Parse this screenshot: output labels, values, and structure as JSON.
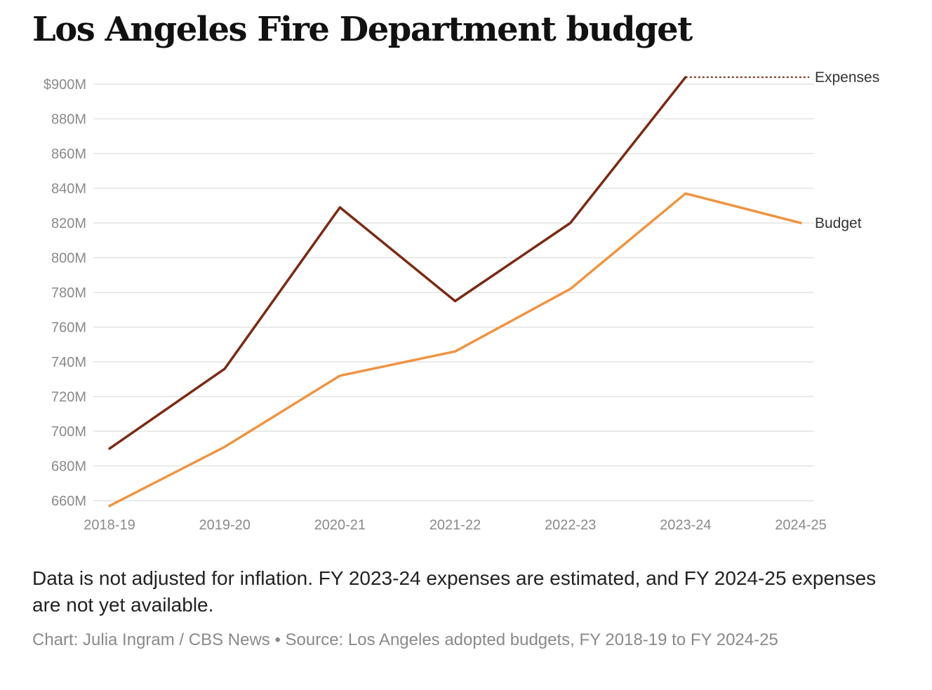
{
  "chart_data": {
    "type": "line",
    "title": "Los Angeles Fire Department budget",
    "categories": [
      "2018-19",
      "2019-20",
      "2020-21",
      "2021-22",
      "2022-23",
      "2023-24",
      "2024-25"
    ],
    "yticks": [
      "$900M",
      "880M",
      "860M",
      "840M",
      "820M",
      "800M",
      "780M",
      "760M",
      "740M",
      "720M",
      "700M",
      "680M",
      "660M"
    ],
    "ylim": [
      660,
      900
    ],
    "unit": "millions of dollars",
    "grid": true,
    "series": [
      {
        "name": "Expenses",
        "color": "#7a2a14",
        "values": [
          690,
          736,
          829,
          775,
          820,
          904,
          null
        ],
        "dotted_extension_to_last_category": true
      },
      {
        "name": "Budget",
        "color": "#ef9443",
        "values": [
          657,
          691,
          732,
          746,
          782,
          837,
          820
        ]
      }
    ],
    "note": "Data is not adjusted for inflation. FY 2023-24 expenses are estimated, and FY 2024-25 expenses are not yet available.",
    "credit": "Chart: Julia Ingram / CBS News • Source: Los Angeles adopted budgets, FY 2018-19 to FY 2024-25"
  }
}
